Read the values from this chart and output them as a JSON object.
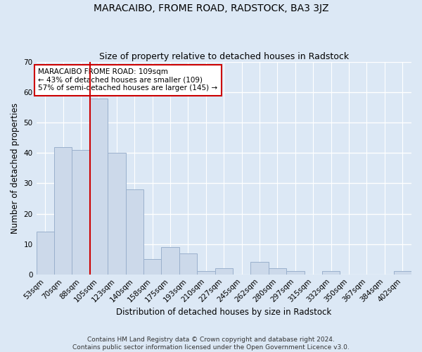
{
  "title": "MARACAIBO, FROME ROAD, RADSTOCK, BA3 3JZ",
  "subtitle": "Size of property relative to detached houses in Radstock",
  "xlabel": "Distribution of detached houses by size in Radstock",
  "ylabel": "Number of detached properties",
  "categories": [
    "53sqm",
    "70sqm",
    "88sqm",
    "105sqm",
    "123sqm",
    "140sqm",
    "158sqm",
    "175sqm",
    "193sqm",
    "210sqm",
    "227sqm",
    "245sqm",
    "262sqm",
    "280sqm",
    "297sqm",
    "315sqm",
    "332sqm",
    "350sqm",
    "367sqm",
    "384sqm",
    "402sqm"
  ],
  "values": [
    14,
    42,
    41,
    58,
    40,
    28,
    5,
    9,
    7,
    1,
    2,
    0,
    4,
    2,
    1,
    0,
    1,
    0,
    0,
    0,
    1
  ],
  "bar_color": "#ccd9ea",
  "bar_edge_color": "#9ab0cc",
  "vline_x_index": 3,
  "vline_color": "#cc0000",
  "annotation_text": "MARACAIBO FROME ROAD: 109sqm\n← 43% of detached houses are smaller (109)\n57% of semi-detached houses are larger (145) →",
  "annotation_box_facecolor": "#ffffff",
  "annotation_box_edgecolor": "#cc0000",
  "ylim": [
    0,
    70
  ],
  "yticks": [
    0,
    10,
    20,
    30,
    40,
    50,
    60,
    70
  ],
  "fig_facecolor": "#dce8f5",
  "axes_facecolor": "#dce8f5",
  "grid_color": "#ffffff",
  "footer_line1": "Contains HM Land Registry data © Crown copyright and database right 2024.",
  "footer_line2": "Contains public sector information licensed under the Open Government Licence v3.0.",
  "title_fontsize": 10,
  "subtitle_fontsize": 9,
  "xlabel_fontsize": 8.5,
  "ylabel_fontsize": 8.5,
  "tick_fontsize": 7.5,
  "annotation_fontsize": 7.5,
  "footer_fontsize": 6.5
}
